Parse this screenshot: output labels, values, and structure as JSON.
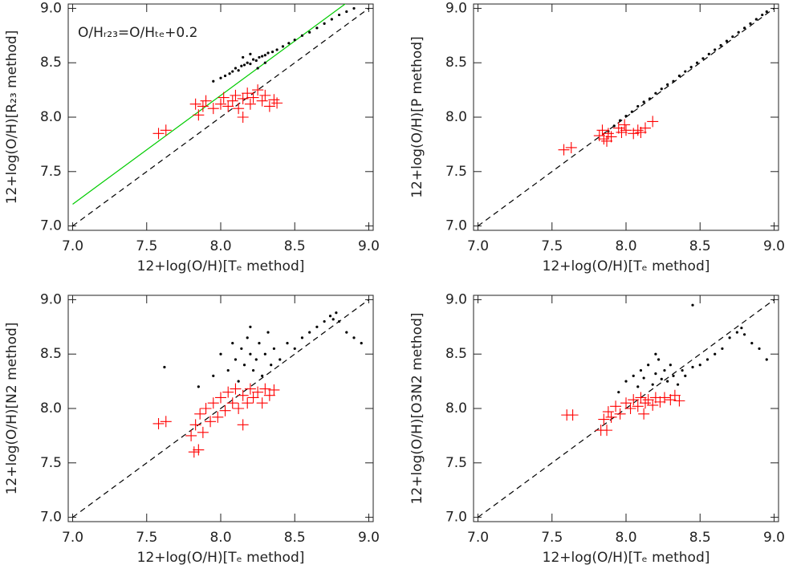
{
  "chart_data": [
    {
      "type": "scatter",
      "xlabel": "12+log(O/H)[Tₑ method]",
      "ylabel": "12+log(O/H)[R₂₃ method]",
      "annotation": "O/Hᵣ₂₃=O/Hₜₑ+0.2",
      "xlim": [
        6.97,
        9.03
      ],
      "ylim": [
        6.96,
        9.04
      ],
      "xticks": [
        {
          "value": 7,
          "label": "7.0"
        },
        {
          "value": 7.5,
          "label": "7.5"
        },
        {
          "value": 8,
          "label": "8.0"
        },
        {
          "value": 8.5,
          "label": "8.5"
        },
        {
          "value": 9,
          "label": "9.0"
        }
      ],
      "yticks": [
        {
          "value": 7,
          "label": "7.0"
        },
        {
          "value": 7.5,
          "label": "7.5"
        },
        {
          "value": 8,
          "label": "8.0"
        },
        {
          "value": 8.5,
          "label": "8.5"
        },
        {
          "value": 9,
          "label": "9.0"
        }
      ],
      "series": [
        {
          "mode": "line",
          "dash": true,
          "color": "#000000",
          "x": [
            7,
            9
          ],
          "values": [
            7,
            9
          ]
        },
        {
          "mode": "line",
          "dash": false,
          "color": "#00cc00",
          "x": [
            7,
            9
          ],
          "values": [
            7.2,
            9.2
          ]
        },
        {
          "mode": "dot",
          "color": "#000000",
          "x": [
            7.95,
            8.0,
            8.03,
            8.06,
            8.08,
            8.1,
            8.12,
            8.14,
            8.16,
            8.18,
            8.2,
            8.22,
            8.24,
            8.26,
            8.28,
            8.3,
            8.32,
            8.35,
            8.38,
            8.42,
            8.46,
            8.5,
            8.55,
            8.6,
            8.65,
            8.7,
            8.75,
            8.8,
            8.85,
            8.9,
            8.2,
            8.25,
            8.15,
            8.3
          ],
          "values": [
            8.33,
            8.36,
            8.38,
            8.4,
            8.42,
            8.45,
            8.43,
            8.47,
            8.48,
            8.5,
            8.49,
            8.53,
            8.52,
            8.55,
            8.56,
            8.57,
            8.59,
            8.6,
            8.62,
            8.65,
            8.68,
            8.71,
            8.75,
            8.78,
            8.82,
            8.86,
            8.9,
            8.94,
            8.97,
            9.0,
            8.58,
            8.45,
            8.55,
            8.5
          ]
        },
        {
          "mode": "plus",
          "color": "#ff0000",
          "x": [
            7.58,
            7.63,
            7.83,
            7.85,
            7.88,
            7.9,
            7.95,
            8.0,
            8.02,
            8.05,
            8.08,
            8.1,
            8.12,
            8.15,
            8.18,
            8.2,
            8.22,
            8.25,
            8.28,
            8.3,
            8.33,
            8.36,
            8.38,
            8.15
          ],
          "values": [
            7.85,
            7.88,
            8.12,
            8.02,
            8.1,
            8.15,
            8.08,
            8.12,
            8.18,
            8.1,
            8.15,
            8.2,
            8.08,
            8.17,
            8.22,
            8.12,
            8.18,
            8.25,
            8.15,
            8.2,
            8.1,
            8.16,
            8.13,
            8.0
          ]
        }
      ]
    },
    {
      "type": "scatter",
      "xlabel": "12+log(O/H)[Tₑ method]",
      "ylabel": "12+log(O/H)[P method]",
      "xlim": [
        6.97,
        9.03
      ],
      "ylim": [
        6.96,
        9.04
      ],
      "xticks": [
        {
          "value": 7,
          "label": "7.0"
        },
        {
          "value": 7.5,
          "label": "7.5"
        },
        {
          "value": 8,
          "label": "8.0"
        },
        {
          "value": 8.5,
          "label": "8.5"
        },
        {
          "value": 9,
          "label": "9.0"
        }
      ],
      "yticks": [
        {
          "value": 7,
          "label": "7.0"
        },
        {
          "value": 7.5,
          "label": "7.5"
        },
        {
          "value": 8,
          "label": "8.0"
        },
        {
          "value": 8.5,
          "label": "8.5"
        },
        {
          "value": 9,
          "label": "9.0"
        }
      ],
      "series": [
        {
          "mode": "line",
          "dash": true,
          "color": "#000000",
          "x": [
            7,
            9
          ],
          "values": [
            7,
            9
          ]
        },
        {
          "mode": "dot",
          "color": "#000000",
          "x": [
            7.88,
            7.92,
            7.96,
            8.0,
            8.04,
            8.08,
            8.12,
            8.16,
            8.2,
            8.24,
            8.28,
            8.32,
            8.36,
            8.4,
            8.44,
            8.48,
            8.52,
            8.56,
            8.6,
            8.64,
            8.68,
            8.72,
            8.76,
            8.8,
            8.84,
            8.88,
            8.92,
            8.95
          ],
          "values": [
            7.87,
            7.92,
            7.97,
            8.01,
            8.05,
            8.1,
            8.14,
            8.17,
            8.22,
            8.26,
            8.3,
            8.33,
            8.38,
            8.42,
            8.46,
            8.5,
            8.54,
            8.58,
            8.62,
            8.66,
            8.7,
            8.74,
            8.78,
            8.82,
            8.86,
            8.9,
            8.94,
            8.97
          ]
        },
        {
          "mode": "plus",
          "color": "#ff0000",
          "x": [
            7.58,
            7.63,
            7.82,
            7.84,
            7.85,
            7.87,
            7.88,
            7.9,
            7.95,
            7.97,
            7.99,
            8.0,
            8.05,
            8.08,
            8.1,
            8.13,
            8.18
          ],
          "values": [
            7.7,
            7.72,
            7.83,
            7.88,
            7.8,
            7.78,
            7.85,
            7.82,
            7.9,
            7.86,
            7.93,
            7.88,
            7.85,
            7.88,
            7.86,
            7.9,
            7.96
          ]
        }
      ]
    },
    {
      "type": "scatter",
      "xlabel": "12+log(O/H)[Tₑ method]",
      "ylabel": "12+log(O/H)[N2 method]",
      "xlim": [
        6.97,
        9.03
      ],
      "ylim": [
        6.96,
        9.04
      ],
      "xticks": [
        {
          "value": 7,
          "label": "7.0"
        },
        {
          "value": 7.5,
          "label": "7.5"
        },
        {
          "value": 8,
          "label": "8.0"
        },
        {
          "value": 8.5,
          "label": "8.5"
        },
        {
          "value": 9,
          "label": "9.0"
        }
      ],
      "yticks": [
        {
          "value": 7,
          "label": "7.0"
        },
        {
          "value": 7.5,
          "label": "7.5"
        },
        {
          "value": 8,
          "label": "8.0"
        },
        {
          "value": 8.5,
          "label": "8.5"
        },
        {
          "value": 9,
          "label": "9.0"
        }
      ],
      "series": [
        {
          "mode": "line",
          "dash": true,
          "color": "#000000",
          "x": [
            7,
            9
          ],
          "values": [
            7,
            9
          ]
        },
        {
          "mode": "dot",
          "color": "#000000",
          "x": [
            7.95,
            8.0,
            8.05,
            8.08,
            8.1,
            8.12,
            8.14,
            8.16,
            8.18,
            8.2,
            8.22,
            8.24,
            8.26,
            8.28,
            8.3,
            8.32,
            8.34,
            8.36,
            8.4,
            8.45,
            8.5,
            8.55,
            8.6,
            8.65,
            8.7,
            8.74,
            8.76,
            8.78,
            8.8,
            8.85,
            8.9,
            8.95,
            7.85,
            7.62,
            8.2
          ],
          "values": [
            8.3,
            8.5,
            8.35,
            8.6,
            8.45,
            8.25,
            8.55,
            8.4,
            8.65,
            8.5,
            8.35,
            8.45,
            8.6,
            8.3,
            8.5,
            8.7,
            8.4,
            8.55,
            8.45,
            8.6,
            8.55,
            8.65,
            8.7,
            8.75,
            8.8,
            8.85,
            8.82,
            8.88,
            8.8,
            8.7,
            8.65,
            8.6,
            8.2,
            8.38,
            8.75
          ]
        },
        {
          "mode": "plus",
          "color": "#ff0000",
          "x": [
            7.58,
            7.63,
            7.82,
            7.85,
            7.8,
            7.83,
            7.86,
            7.88,
            7.9,
            7.93,
            7.95,
            7.98,
            8.0,
            8.03,
            8.05,
            8.08,
            8.1,
            8.12,
            8.15,
            8.18,
            8.2,
            8.22,
            8.25,
            8.28,
            8.3,
            8.33,
            8.36,
            8.15
          ],
          "values": [
            7.86,
            7.88,
            7.6,
            7.62,
            7.75,
            7.85,
            7.95,
            7.78,
            8.0,
            7.88,
            8.05,
            7.92,
            8.1,
            7.98,
            8.15,
            8.05,
            8.18,
            8.0,
            8.12,
            8.05,
            8.18,
            8.1,
            8.15,
            8.05,
            8.18,
            8.12,
            8.17,
            7.85
          ]
        }
      ]
    },
    {
      "type": "scatter",
      "xlabel": "12+log(O/H)[Tₑ method]",
      "ylabel": "12+log(O/H)[O3N2 method]",
      "xlim": [
        6.97,
        9.03
      ],
      "ylim": [
        6.96,
        9.04
      ],
      "xticks": [
        {
          "value": 7,
          "label": "7.0"
        },
        {
          "value": 7.5,
          "label": "7.5"
        },
        {
          "value": 8,
          "label": "8.0"
        },
        {
          "value": 8.5,
          "label": "8.5"
        },
        {
          "value": 9,
          "label": "9.0"
        }
      ],
      "yticks": [
        {
          "value": 7,
          "label": "7.0"
        },
        {
          "value": 7.5,
          "label": "7.5"
        },
        {
          "value": 8,
          "label": "8.0"
        },
        {
          "value": 8.5,
          "label": "8.5"
        },
        {
          "value": 9,
          "label": "9.0"
        }
      ],
      "series": [
        {
          "mode": "line",
          "dash": true,
          "color": "#000000",
          "x": [
            7,
            9
          ],
          "values": [
            7,
            9
          ]
        },
        {
          "mode": "dot",
          "color": "#000000",
          "x": [
            7.95,
            8.0,
            8.05,
            8.08,
            8.1,
            8.12,
            8.15,
            8.18,
            8.2,
            8.22,
            8.24,
            8.26,
            8.28,
            8.3,
            8.32,
            8.35,
            8.38,
            8.4,
            8.45,
            8.5,
            8.55,
            8.6,
            8.65,
            8.7,
            8.75,
            8.78,
            8.8,
            8.85,
            8.9,
            8.95,
            8.45,
            8.2
          ],
          "values": [
            8.15,
            8.25,
            8.3,
            8.2,
            8.35,
            8.28,
            8.4,
            8.22,
            8.32,
            8.45,
            8.27,
            8.35,
            8.25,
            8.4,
            8.3,
            8.22,
            8.35,
            8.3,
            8.38,
            8.4,
            8.45,
            8.5,
            8.55,
            8.65,
            8.7,
            8.74,
            8.68,
            8.6,
            8.55,
            8.45,
            8.95,
            8.5
          ]
        },
        {
          "mode": "plus",
          "color": "#ff0000",
          "x": [
            7.6,
            7.64,
            7.83,
            7.87,
            7.85,
            7.88,
            7.9,
            7.93,
            7.96,
            8.0,
            8.03,
            8.05,
            8.08,
            8.1,
            8.13,
            8.15,
            8.18,
            8.2,
            8.23,
            8.26,
            8.3,
            8.33,
            8.36,
            8.12
          ],
          "values": [
            7.94,
            7.94,
            7.8,
            7.8,
            7.9,
            7.97,
            7.92,
            8.02,
            7.95,
            8.05,
            8.0,
            8.08,
            8.02,
            8.1,
            8.05,
            8.08,
            8.03,
            8.1,
            8.06,
            8.1,
            8.08,
            8.12,
            8.07,
            7.95
          ]
        }
      ]
    }
  ]
}
